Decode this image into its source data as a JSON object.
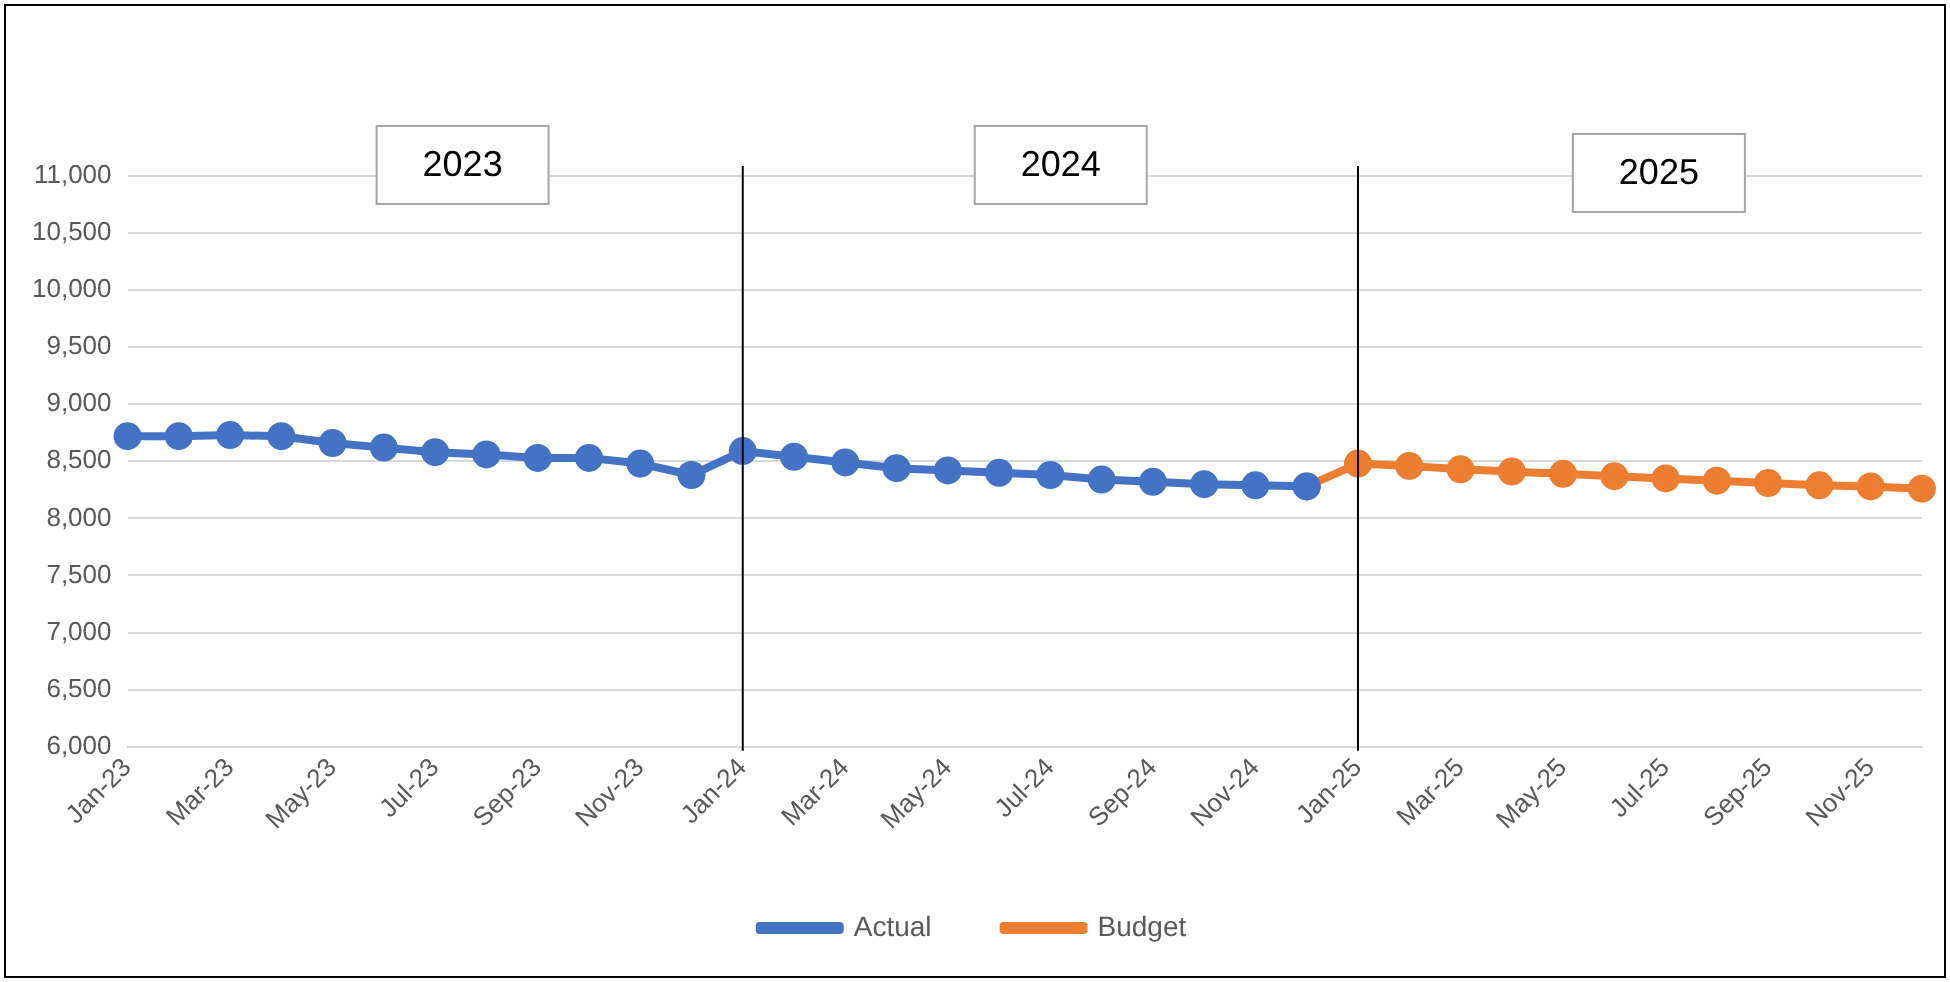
{
  "chart_data": {
    "type": "line",
    "categories": [
      "Jan-23",
      null,
      "Mar-23",
      null,
      "May-23",
      null,
      "Jul-23",
      null,
      "Sep-23",
      null,
      "Nov-23",
      null,
      "Jan-24",
      null,
      "Mar-24",
      null,
      "May-24",
      null,
      "Jul-24",
      null,
      "Sep-24",
      null,
      "Nov-24",
      null,
      "Jan-25",
      null,
      "Mar-25",
      null,
      "May-25",
      null,
      "Jul-25",
      null,
      "Sep-25",
      null,
      "Nov-25",
      null
    ],
    "series": [
      {
        "name": "Actual",
        "color": "#4472c4",
        "values": [
          8720,
          8720,
          8730,
          8720,
          8660,
          8620,
          8580,
          8560,
          8530,
          8530,
          8480,
          8380,
          8590,
          8540,
          8490,
          8440,
          8420,
          8400,
          8380,
          8340,
          8320,
          8300,
          8290,
          8280,
          null,
          null,
          null,
          null,
          null,
          null,
          null,
          null,
          null,
          null,
          null,
          null
        ]
      },
      {
        "name": "Budget",
        "color": "#ed7d31",
        "values": [
          null,
          null,
          null,
          null,
          null,
          null,
          null,
          null,
          null,
          null,
          null,
          null,
          null,
          null,
          null,
          null,
          null,
          null,
          null,
          null,
          null,
          null,
          null,
          8280,
          8480,
          8460,
          8430,
          8410,
          8390,
          8370,
          8350,
          8330,
          8310,
          8290,
          8280,
          8260
        ]
      }
    ],
    "ylim": [
      6000,
      11000
    ],
    "yticks": [
      {
        "value": 6000,
        "label": "6,000"
      },
      {
        "value": 6500,
        "label": "6,500"
      },
      {
        "value": 7000,
        "label": "7,000"
      },
      {
        "value": 7500,
        "label": "7,500"
      },
      {
        "value": 8000,
        "label": "8,000"
      },
      {
        "value": 8500,
        "label": "8,500"
      },
      {
        "value": 9000,
        "label": "9,000"
      },
      {
        "value": 9500,
        "label": "9,500"
      },
      {
        "value": 10000,
        "label": "10,000"
      },
      {
        "value": 10500,
        "label": "10,500"
      },
      {
        "value": 11000,
        "label": "11,000"
      }
    ],
    "ref_lines": [
      {
        "axis": "x",
        "value": "Jan-24",
        "color": "#000000"
      },
      {
        "axis": "x",
        "value": "Jan-25",
        "color": "#000000"
      }
    ],
    "annotations": [
      "2023",
      "2024",
      "2025"
    ],
    "grid": "y",
    "legend": "bottom",
    "marker": "circle",
    "line_style": "solid"
  }
}
